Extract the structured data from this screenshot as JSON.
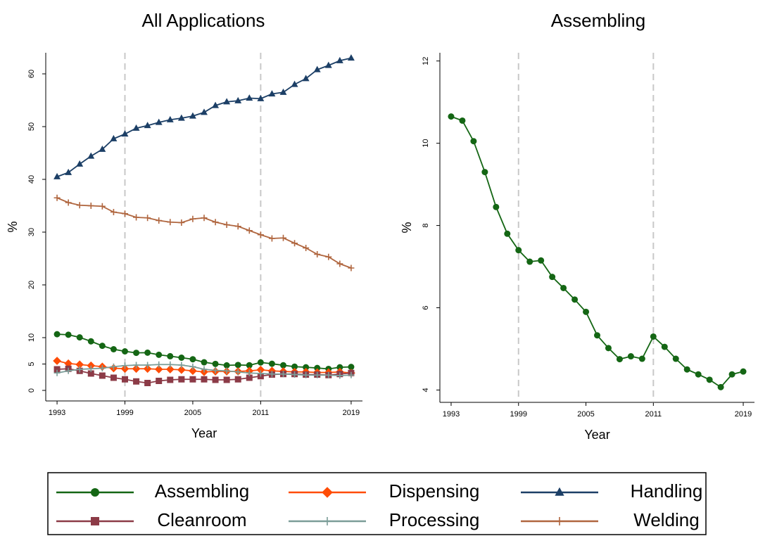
{
  "chart_data": [
    {
      "type": "line",
      "title": "All Applications",
      "xlabel": "Year",
      "ylabel": "%",
      "x": [
        1993,
        1994,
        1995,
        1996,
        1997,
        1998,
        1999,
        2000,
        2001,
        2002,
        2003,
        2004,
        2005,
        2006,
        2007,
        2008,
        2009,
        2010,
        2011,
        2012,
        2013,
        2014,
        2015,
        2016,
        2017,
        2018,
        2019
      ],
      "xlim": [
        1992,
        2020
      ],
      "xticks": [
        1993,
        1999,
        2005,
        2011,
        2019
      ],
      "ylim": [
        -2,
        64
      ],
      "yticks": [
        0,
        5,
        10,
        20,
        30,
        40,
        50,
        60
      ],
      "vlines": [
        1999,
        2011
      ],
      "legend": "bottom",
      "series": [
        {
          "name": "Assembling",
          "color": "#146614",
          "marker": "circle",
          "values": [
            10.65,
            10.55,
            10.05,
            9.3,
            8.45,
            7.8,
            7.4,
            7.12,
            7.15,
            6.75,
            6.48,
            6.2,
            5.9,
            5.33,
            5.02,
            4.75,
            4.82,
            4.76,
            5.3,
            5.05,
            4.76,
            4.5,
            4.38,
            4.25,
            4.07,
            4.38,
            4.45
          ]
        },
        {
          "name": "Dispensing",
          "color": "#ff4c05",
          "marker": "diamond",
          "values": [
            5.6,
            5.1,
            4.9,
            4.7,
            4.5,
            4.2,
            4.1,
            4.1,
            4.1,
            4.0,
            4.0,
            3.9,
            3.7,
            3.5,
            3.6,
            3.6,
            3.6,
            3.7,
            3.9,
            3.7,
            3.6,
            3.5,
            3.5,
            3.4,
            3.4,
            3.5,
            3.3
          ]
        },
        {
          "name": "Handling",
          "color": "#1c3f66",
          "marker": "triangle",
          "values": [
            40.5,
            41.3,
            42.9,
            44.4,
            45.7,
            47.7,
            48.6,
            49.7,
            50.2,
            50.8,
            51.3,
            51.6,
            52.0,
            52.7,
            54.0,
            54.7,
            54.9,
            55.4,
            55.3,
            56.2,
            56.5,
            58.0,
            59.1,
            60.8,
            61.6,
            62.5,
            63.0
          ]
        },
        {
          "name": "Cleanroom",
          "color": "#8c3b47",
          "marker": "square",
          "values": [
            4.0,
            4.1,
            3.7,
            3.2,
            2.8,
            2.4,
            2.1,
            1.7,
            1.4,
            1.8,
            2.0,
            2.1,
            2.1,
            2.1,
            2.0,
            2.0,
            2.1,
            2.4,
            2.7,
            3.0,
            3.1,
            3.1,
            3.0,
            3.0,
            2.9,
            3.1,
            3.3
          ]
        },
        {
          "name": "Processing",
          "color": "#7b9d98",
          "marker": "plus",
          "values": [
            3.3,
            3.7,
            4.0,
            4.1,
            4.2,
            4.5,
            4.7,
            4.8,
            4.8,
            4.9,
            4.9,
            4.8,
            4.5,
            4.0,
            3.8,
            3.7,
            3.5,
            3.3,
            3.2,
            3.1,
            3.1,
            3.0,
            2.9,
            2.9,
            2.9,
            2.8,
            2.9
          ]
        },
        {
          "name": "Welding",
          "color": "#b0663f",
          "marker": "plus",
          "values": [
            36.5,
            35.6,
            35.1,
            35.0,
            34.9,
            33.8,
            33.5,
            32.8,
            32.7,
            32.2,
            31.9,
            31.8,
            32.5,
            32.7,
            31.9,
            31.4,
            31.1,
            30.3,
            29.5,
            28.8,
            28.9,
            27.9,
            27.0,
            25.8,
            25.3,
            24.0,
            23.2
          ]
        }
      ]
    },
    {
      "type": "line",
      "title": "Assembling",
      "xlabel": "Year",
      "ylabel": "%",
      "x": [
        1993,
        1994,
        1995,
        1996,
        1997,
        1998,
        1999,
        2000,
        2001,
        2002,
        2003,
        2004,
        2005,
        2006,
        2007,
        2008,
        2009,
        2010,
        2011,
        2012,
        2013,
        2014,
        2015,
        2016,
        2017,
        2018,
        2019
      ],
      "xlim": [
        1992,
        2020
      ],
      "xticks": [
        1993,
        1999,
        2005,
        2011,
        2019
      ],
      "ylim": [
        3.7,
        12.2
      ],
      "yticks": [
        4,
        6,
        8,
        10,
        12
      ],
      "vlines": [
        1999,
        2011
      ],
      "series": [
        {
          "color": "#146614",
          "marker": "circle",
          "values": [
            10.65,
            10.55,
            10.05,
            9.3,
            8.45,
            7.8,
            7.4,
            7.12,
            7.15,
            6.75,
            6.48,
            6.2,
            5.9,
            5.33,
            5.02,
            4.75,
            4.82,
            4.76,
            5.3,
            5.05,
            4.76,
            4.5,
            4.38,
            4.25,
            4.07,
            4.38,
            4.45
          ]
        }
      ]
    }
  ]
}
